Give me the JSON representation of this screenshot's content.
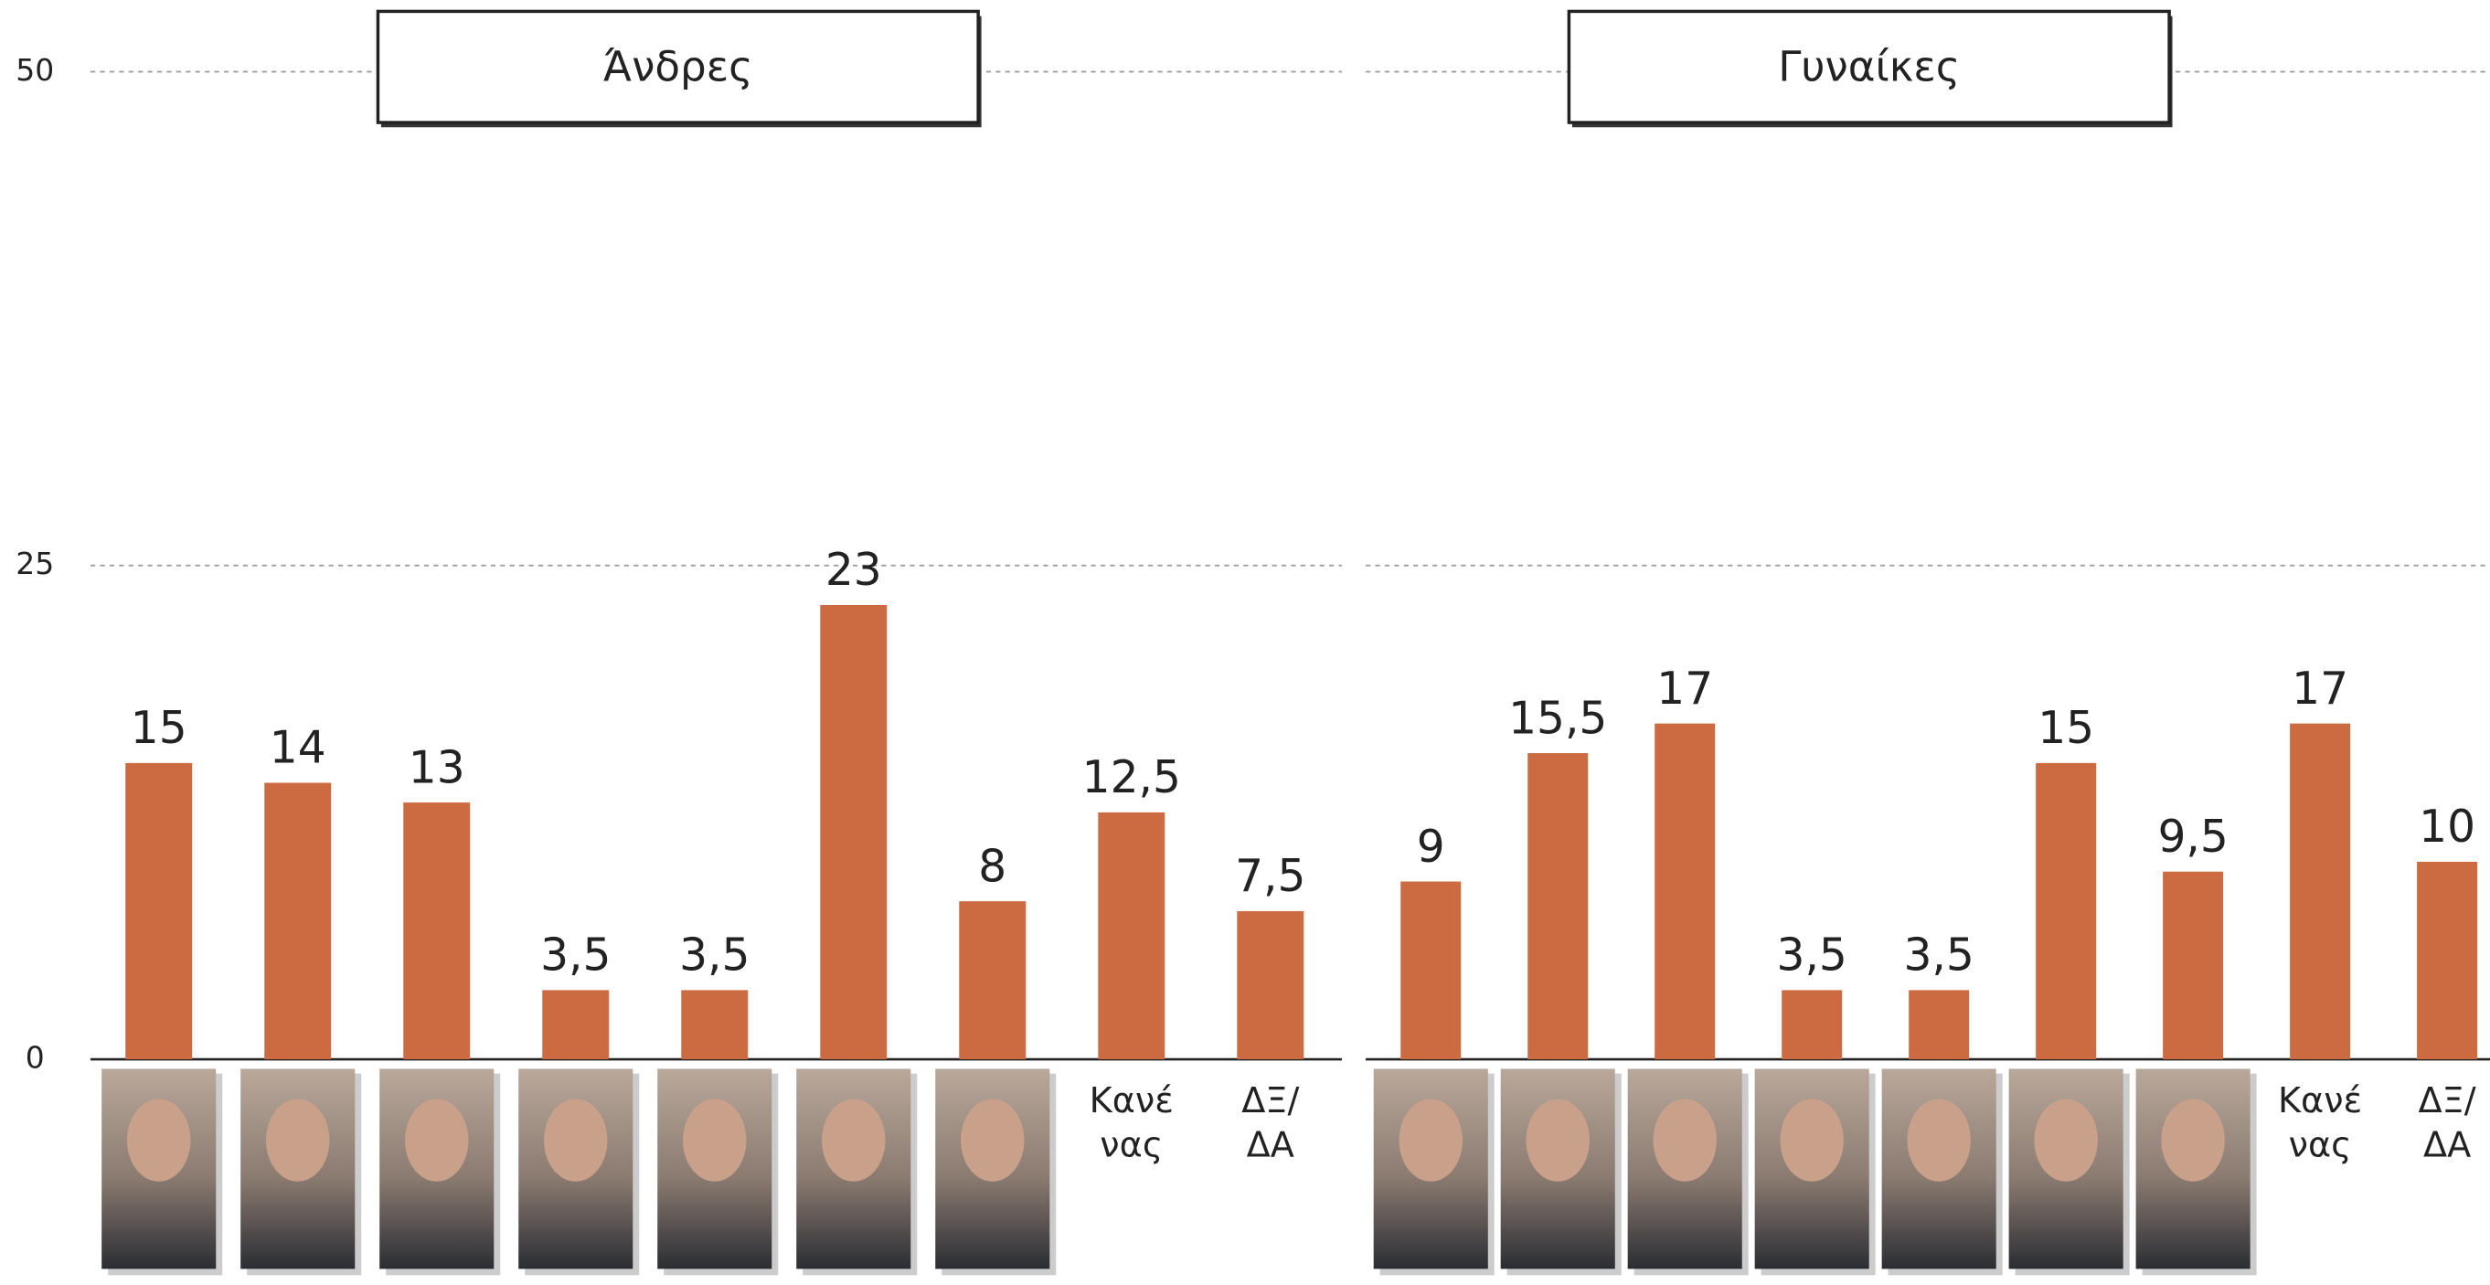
{
  "chart_data": [
    {
      "type": "bar",
      "title": "Άνδρες",
      "categories": [
        null,
        null,
        null,
        null,
        null,
        null,
        null,
        "Κανέ\nνας",
        "ΔΞ/\nΔΑ"
      ],
      "values": [
        15,
        14,
        13,
        3.5,
        3.5,
        23,
        8,
        12.5,
        7.5
      ],
      "value_labels": [
        "15",
        "14",
        "13",
        "3,5",
        "3,5",
        "23",
        "8",
        "12,5",
        "7,5"
      ],
      "color": "#cc6b42",
      "ylim": [
        0,
        50
      ],
      "yticks": [
        0,
        25,
        50
      ],
      "grid": true,
      "ytick_labels": true
    },
    {
      "type": "bar",
      "title": "Γυναίκες",
      "categories": [
        null,
        null,
        null,
        null,
        null,
        null,
        null,
        "Κανέ\nνας",
        "ΔΞ/\nΔΑ"
      ],
      "values": [
        9,
        15.5,
        17,
        3.5,
        3.5,
        15,
        9.5,
        17,
        10
      ],
      "value_labels": [
        "9",
        "15,5",
        "17",
        "3,5",
        "3,5",
        "15",
        "9,5",
        "17",
        "10"
      ],
      "color": "#cc6b42",
      "ylim": [
        0,
        50
      ],
      "yticks": [
        0,
        25,
        50
      ],
      "grid": true,
      "ytick_labels": false
    }
  ]
}
